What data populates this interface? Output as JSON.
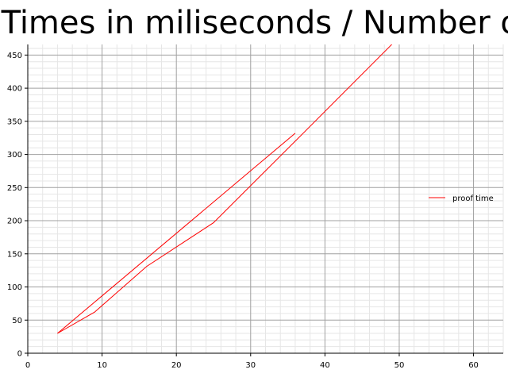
{
  "chart_data": {
    "type": "line",
    "title": "Verification Times in miliseconds / Number of Constraints",
    "xlabel": "",
    "ylabel": "",
    "xlim": [
      0,
      64
    ],
    "ylim": [
      0,
      466
    ],
    "x_ticks": [
      0,
      10,
      20,
      30,
      40,
      50,
      60
    ],
    "y_ticks": [
      0,
      50,
      100,
      150,
      200,
      250,
      300,
      350,
      400,
      450
    ],
    "x_tick_labels": [
      "0",
      "10",
      "20",
      "30",
      "40",
      "50",
      "60"
    ],
    "y_tick_labels": [
      "0",
      "50",
      "100",
      "150",
      "200",
      "250",
      "300",
      "350",
      "400",
      "450"
    ],
    "grid": true,
    "minor_grid": true,
    "legend_position": "right",
    "series": [
      {
        "name": "proof time",
        "color": "#ff0000",
        "points": [
          [
            4,
            30
          ],
          [
            9,
            62
          ],
          [
            16,
            131
          ],
          [
            25,
            197
          ],
          [
            36,
            320
          ],
          [
            49,
            466
          ],
          [
            49.2,
            470
          ]
        ]
      },
      {
        "name": "",
        "color": "#ff0000",
        "points": [
          [
            4,
            30
          ],
          [
            36,
            332
          ]
        ]
      }
    ]
  }
}
